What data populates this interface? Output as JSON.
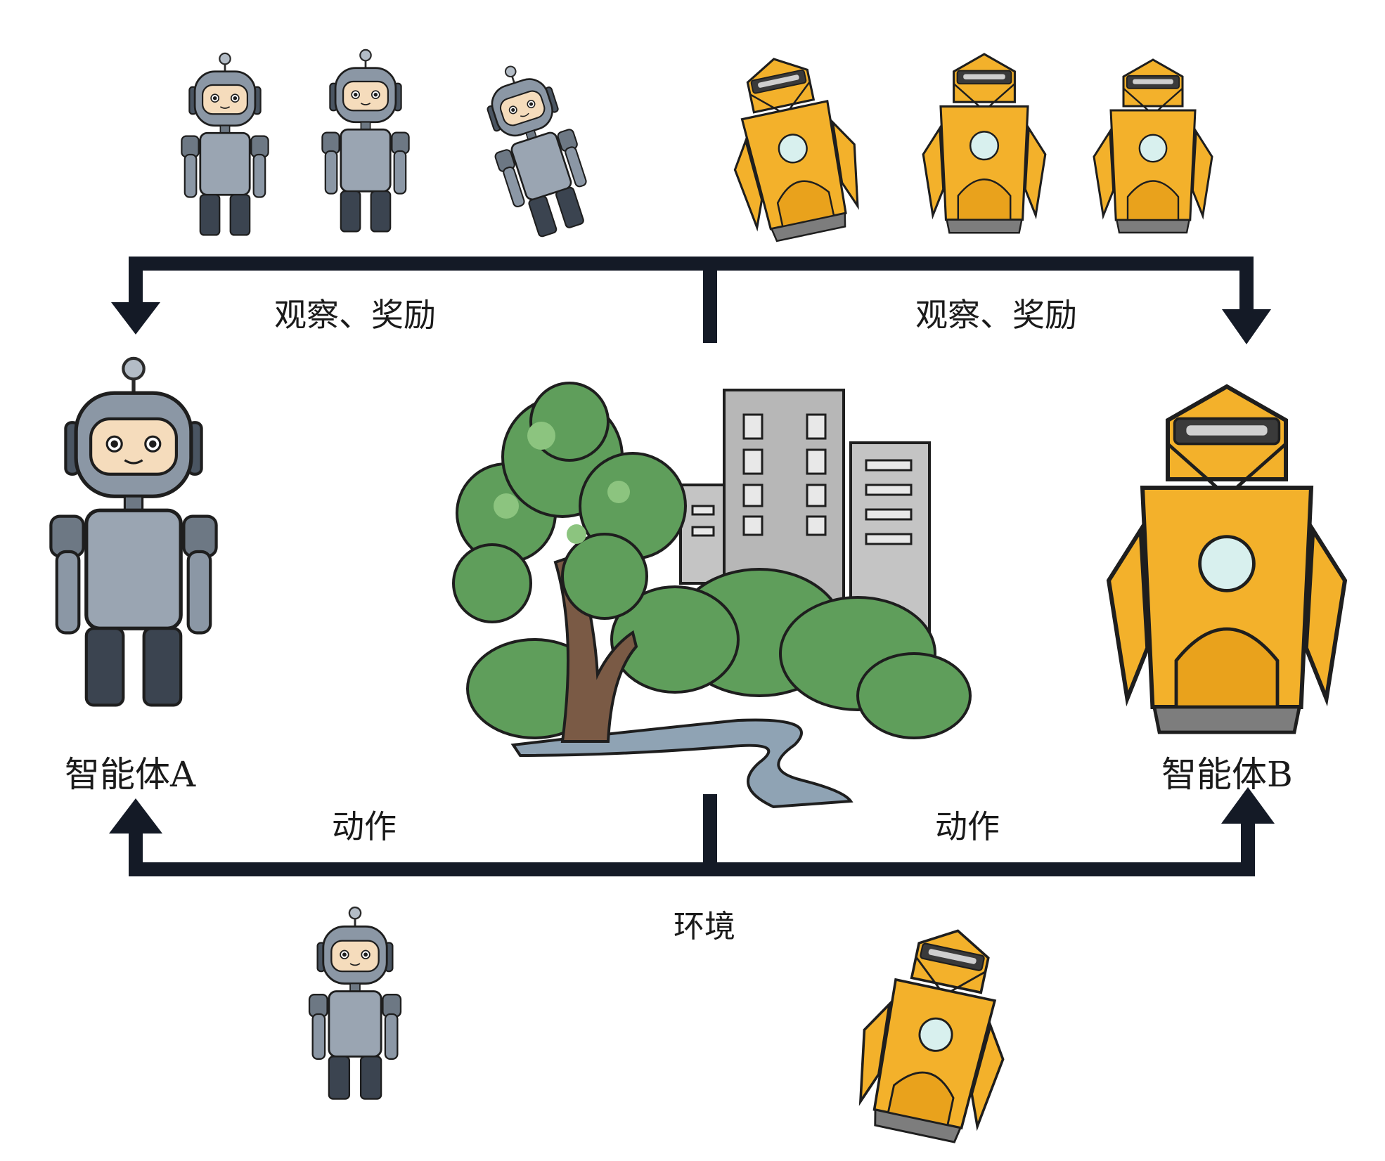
{
  "labels": {
    "obs_left": "观察、奖励",
    "obs_right": "观察、奖励",
    "act_left": "动作",
    "act_right": "动作",
    "agent_a": "智能体A",
    "agent_b": "智能体B",
    "environment": "环境"
  },
  "colors": {
    "line": "#141a26",
    "robot_gray": "#8b97a5",
    "robot_gray_dark": "#4a5562",
    "robot_yellow": "#f3b12b",
    "robot_yellow_dark": "#c98a12",
    "tree_green": "#5f9e5b",
    "tree_light": "#8cc47f",
    "trunk": "#7a5a45",
    "building": "#b7b7b7",
    "water": "#8fa3b4"
  },
  "icons": [
    "gray-robot-icon",
    "yellow-robot-icon",
    "tree-icon",
    "building-icon",
    "path-icon"
  ]
}
